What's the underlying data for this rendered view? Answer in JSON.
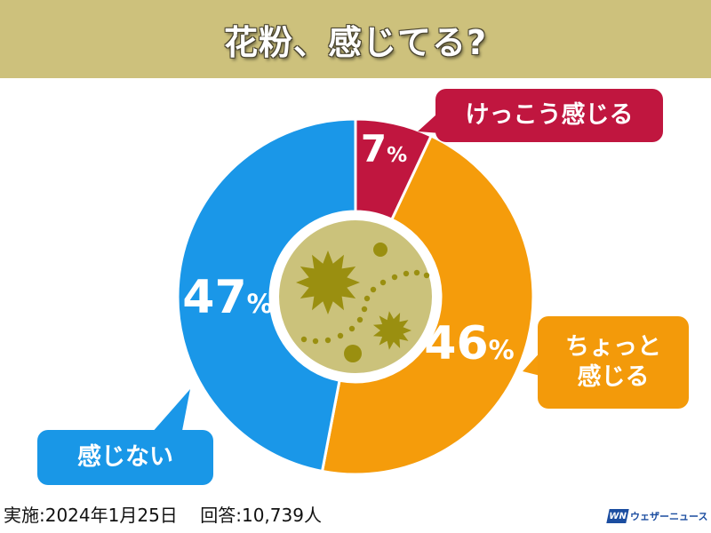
{
  "header": {
    "title": "花粉、感じてる?"
  },
  "chart_data": {
    "type": "pie",
    "title": "花粉、感じてる?",
    "categories": [
      "けっこう感じる",
      "ちょっと感じる",
      "感じない"
    ],
    "values": [
      7,
      46,
      47
    ],
    "value_labels": [
      "7",
      "46",
      "47"
    ],
    "unit": "%",
    "colors": [
      "#c0163f",
      "#f59c0b",
      "#1a97e8"
    ]
  },
  "callouts": {
    "kekkou": "けっこう感じる",
    "chotto_line1": "ちょっと",
    "chotto_line2": "感じる",
    "nai": "感じない"
  },
  "footer": {
    "date_label": "実施:2024年1月25日",
    "respondents_label": "回答:10,739人"
  },
  "brand": {
    "mark": "WN",
    "name": "ウェザーニュース"
  },
  "colors": {
    "header_bg": "#cdc17c",
    "center_circle": "#cbc27b",
    "pollen": "#9a8f10"
  }
}
